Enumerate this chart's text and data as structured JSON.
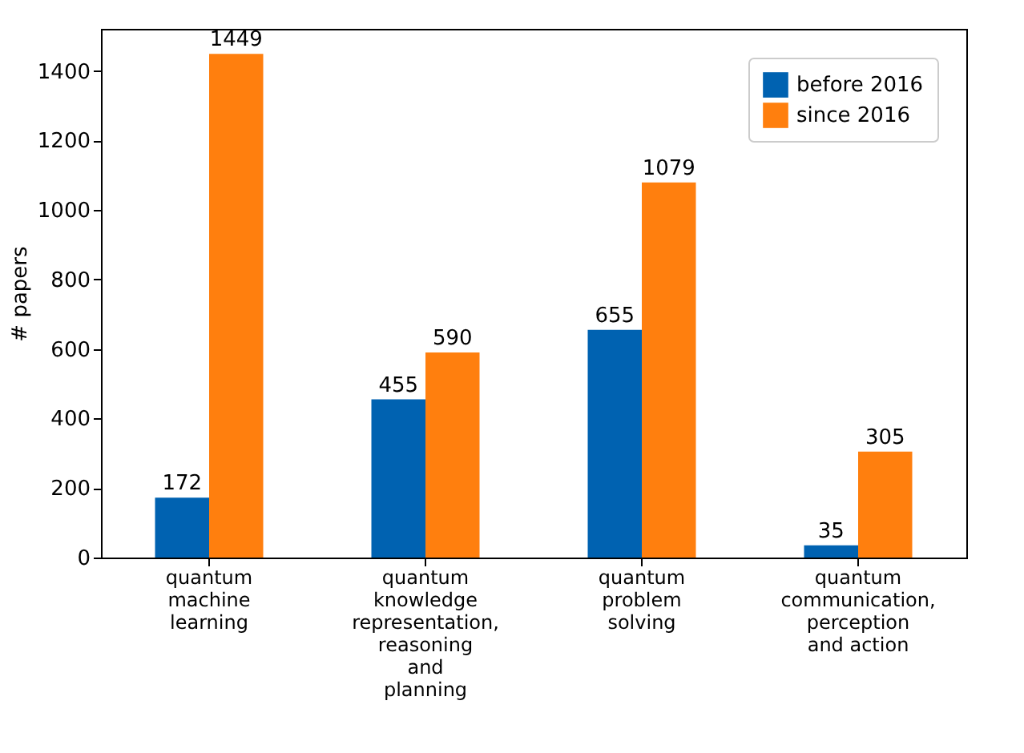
{
  "chart_data": {
    "type": "bar",
    "ylabel": "# papers",
    "categories": [
      "quantum\nmachine\nlearning",
      "quantum\nknowledge\nrepresentation,\nreasoning\nand\nplanning",
      "quantum\nproblem\nsolving",
      "quantum\ncommunication,\nperception\nand action"
    ],
    "series": [
      {
        "name": "before 2016",
        "color": "#0062b1",
        "values": [
          172,
          455,
          655,
          35
        ]
      },
      {
        "name": "since 2016",
        "color": "#ff7f0e",
        "values": [
          1449,
          590,
          1079,
          305
        ]
      }
    ],
    "ylim": [
      0,
      1521
    ],
    "yticks": [
      0,
      200,
      400,
      600,
      800,
      1000,
      1200,
      1400
    ],
    "data_labels": true,
    "grid": false,
    "legend": "top right"
  }
}
